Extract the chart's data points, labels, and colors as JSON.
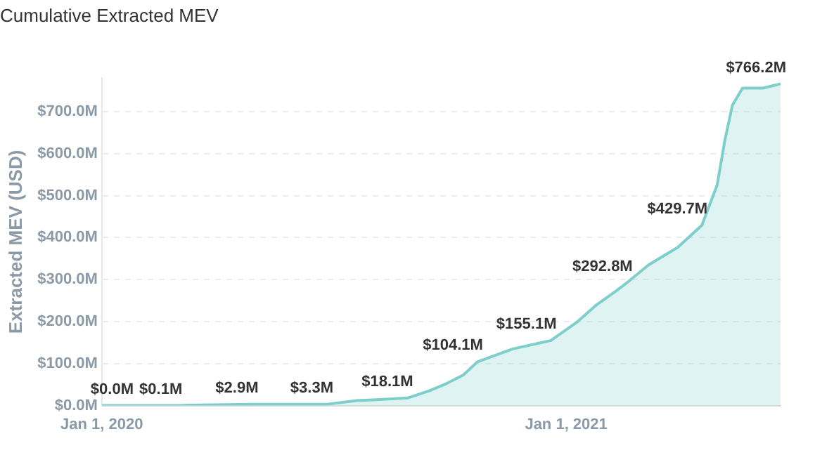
{
  "chart_data": {
    "type": "area",
    "title": "Cumulative Extracted MEV",
    "ylabel": "Extracted MEV (USD)",
    "x": [
      "2020-01-01",
      "2020-02-29",
      "2020-03-10",
      "2020-04-29",
      "2020-06-27",
      "2020-07-20",
      "2020-08-10",
      "2020-08-29",
      "2020-09-15",
      "2020-09-27",
      "2020-10-12",
      "2020-10-23",
      "2020-11-20",
      "2020-12-20",
      "2021-01-10",
      "2021-01-25",
      "2021-02-09",
      "2021-02-18",
      "2021-03-07",
      "2021-03-30",
      "2021-04-18",
      "2021-04-30",
      "2021-05-06",
      "2021-05-12",
      "2021-05-20",
      "2021-06-05",
      "2021-06-19"
    ],
    "series": [
      {
        "color": "#7ecfcb",
        "values": [
          0,
          0.1,
          1,
          2.9,
          3.3,
          12,
          15,
          18.1,
          35,
          50,
          73,
          104.1,
          135,
          155.1,
          200,
          240,
          272,
          292.8,
          335,
          377,
          429.7,
          525,
          630,
          715,
          756,
          756,
          766.2
        ],
        "value_labels": [
          "$0.0M",
          "$0.1M",
          null,
          "$2.9M",
          "$3.3M",
          null,
          null,
          "$18.1M",
          null,
          null,
          null,
          "$104.1M",
          null,
          "$155.1M",
          null,
          null,
          null,
          "$292.8M",
          null,
          null,
          "$429.7M",
          null,
          null,
          null,
          null,
          null,
          "$766.2M"
        ]
      }
    ],
    "xlim": [
      "2020-01-01",
      "2021-06-19"
    ],
    "xticks": [
      {
        "value": "2020-01-01",
        "label": "Jan 1, 2020"
      },
      {
        "value": "2021-01-01",
        "label": "Jan 1, 2021"
      }
    ],
    "ylim": [
      0,
      780
    ],
    "yticks": [
      {
        "value": 0,
        "label": "$0.0M"
      },
      {
        "value": 100,
        "label": "$100.0M"
      },
      {
        "value": 200,
        "label": "$200.0M"
      },
      {
        "value": 300,
        "label": "$300.0M"
      },
      {
        "value": 400,
        "label": "$400.0M"
      },
      {
        "value": 500,
        "label": "$500.0M"
      },
      {
        "value": 600,
        "label": "$600.0M"
      },
      {
        "value": 700,
        "label": "$700.0M"
      }
    ],
    "grid": "y",
    "legend": false,
    "marker": "none",
    "line_style": "solid"
  }
}
